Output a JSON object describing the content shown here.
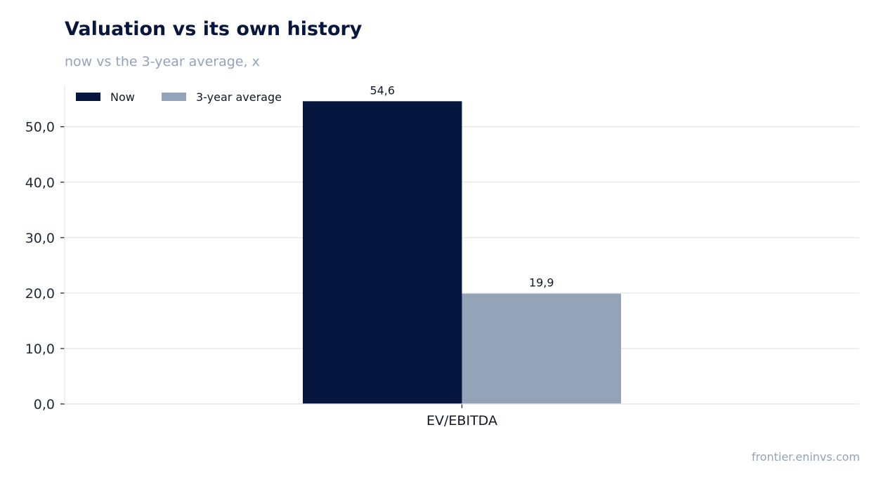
{
  "header": {
    "title": "Valuation vs its own history",
    "subtitle": "now vs the 3-year average, x"
  },
  "footer": {
    "source": "frontier.eninvs.com"
  },
  "colors": {
    "now": "#06163f",
    "average": "#94a3b8",
    "grid": "#e5e7eb",
    "axis": "#111827"
  },
  "chart_data": {
    "type": "bar",
    "categories": [
      "EV/EBITDA"
    ],
    "series": [
      {
        "name": "Now",
        "values": [
          54.6
        ],
        "labels": [
          "54,6"
        ]
      },
      {
        "name": "3-year average",
        "values": [
          19.9
        ],
        "labels": [
          "19,9"
        ]
      }
    ],
    "ylim": [
      0,
      57.3
    ],
    "yticks": [
      0,
      10,
      20,
      30,
      40,
      50
    ],
    "ytick_labels": [
      "0,0",
      "10,0",
      "20,0",
      "30,0",
      "40,0",
      "50,0"
    ],
    "grid": true,
    "legend": "top-left"
  }
}
